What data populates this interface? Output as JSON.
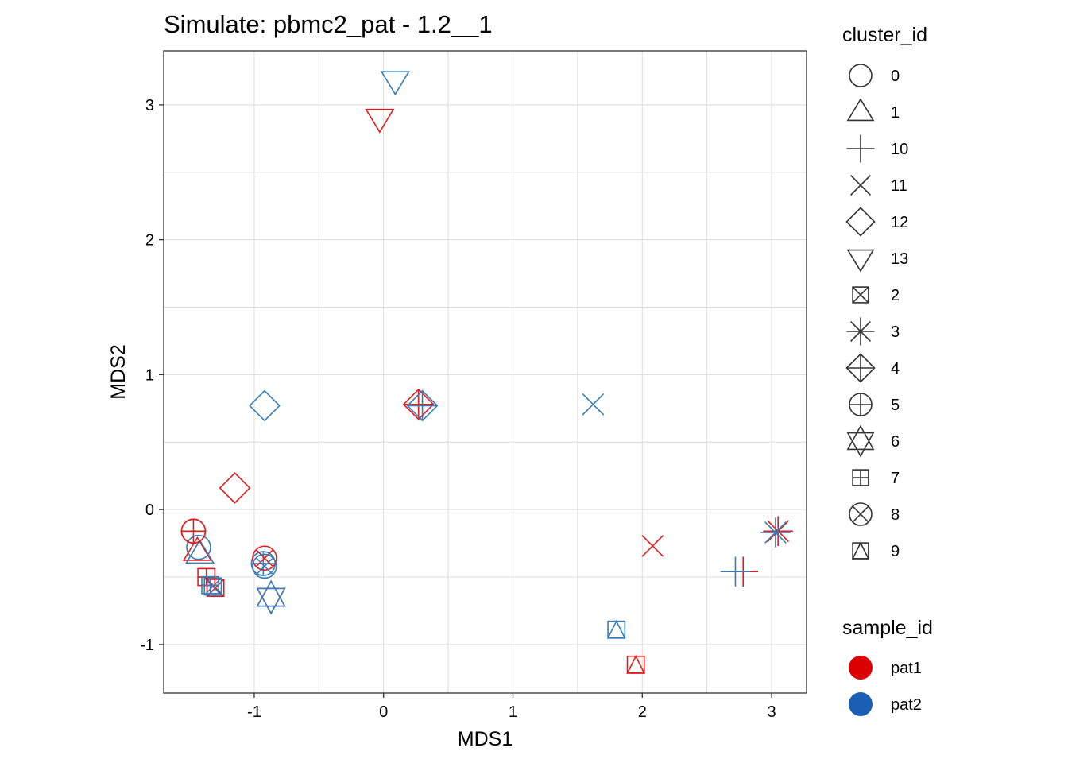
{
  "chart_data": {
    "type": "scatter",
    "title": "Simulate: pbmc2_pat - 1.2__1",
    "xlabel": "MDS1",
    "ylabel": "MDS2",
    "xlim": [
      -1.7,
      3.27
    ],
    "ylim": [
      -1.36,
      3.4
    ],
    "xticks": [
      -1,
      0,
      1,
      2,
      3
    ],
    "yticks": [
      -1,
      0,
      1,
      2,
      3
    ],
    "xtick_labels": [
      "-1",
      "0",
      "1",
      "2",
      "3"
    ],
    "ytick_labels": [
      "-1",
      "0",
      "1",
      "2",
      "3"
    ],
    "grid": true,
    "legend_position": "right",
    "colors": {
      "pat1": "#e41a1c",
      "pat2": "#377eb8",
      "legend_pat1": "#dd0000",
      "legend_pat2": "#1a5fb4"
    },
    "legend_shape": {
      "title": "cluster_id",
      "entries": [
        {
          "label": "0",
          "shape": "circle"
        },
        {
          "label": "1",
          "shape": "triangle"
        },
        {
          "label": "10",
          "shape": "plus"
        },
        {
          "label": "11",
          "shape": "cross"
        },
        {
          "label": "12",
          "shape": "diamond"
        },
        {
          "label": "13",
          "shape": "triangle-down"
        },
        {
          "label": "2",
          "shape": "square-cross"
        },
        {
          "label": "3",
          "shape": "asterisk"
        },
        {
          "label": "4",
          "shape": "diamond-plus"
        },
        {
          "label": "5",
          "shape": "circle-plus"
        },
        {
          "label": "6",
          "shape": "star-of-david"
        },
        {
          "label": "7",
          "shape": "square-plus"
        },
        {
          "label": "8",
          "shape": "circle-cross"
        },
        {
          "label": "9",
          "shape": "square-triangle"
        }
      ]
    },
    "legend_color": {
      "title": "sample_id",
      "entries": [
        {
          "label": "pat1",
          "color": "#dd0000"
        },
        {
          "label": "pat2",
          "color": "#1a5fb4"
        }
      ]
    },
    "points": [
      {
        "cluster": "0",
        "sample": "pat1",
        "x": -1.47,
        "y": -0.16
      },
      {
        "cluster": "0",
        "sample": "pat2",
        "x": -1.43,
        "y": -0.28
      },
      {
        "cluster": "1",
        "sample": "pat1",
        "x": -1.44,
        "y": -0.31
      },
      {
        "cluster": "1",
        "sample": "pat2",
        "x": -1.42,
        "y": -0.33
      },
      {
        "cluster": "10",
        "sample": "pat1",
        "x": 2.78,
        "y": -0.46
      },
      {
        "cluster": "10",
        "sample": "pat2",
        "x": 2.72,
        "y": -0.46
      },
      {
        "cluster": "11",
        "sample": "pat1",
        "x": 2.08,
        "y": -0.27
      },
      {
        "cluster": "11",
        "sample": "pat2",
        "x": 1.62,
        "y": 0.78
      },
      {
        "cluster": "12",
        "sample": "pat1",
        "x": -1.15,
        "y": 0.16
      },
      {
        "cluster": "12",
        "sample": "pat2",
        "x": -0.92,
        "y": 0.77
      },
      {
        "cluster": "13",
        "sample": "pat1",
        "x": -0.03,
        "y": 2.9
      },
      {
        "cluster": "13",
        "sample": "pat2",
        "x": 0.09,
        "y": 3.18
      },
      {
        "cluster": "2",
        "sample": "pat1",
        "x": -1.3,
        "y": -0.58
      },
      {
        "cluster": "2",
        "sample": "pat2",
        "x": -1.32,
        "y": -0.57
      },
      {
        "cluster": "3",
        "sample": "pat1",
        "x": 3.05,
        "y": -0.16
      },
      {
        "cluster": "3",
        "sample": "pat2",
        "x": 3.03,
        "y": -0.17
      },
      {
        "cluster": "4",
        "sample": "pat1",
        "x": 0.27,
        "y": 0.78
      },
      {
        "cluster": "4",
        "sample": "pat2",
        "x": 0.3,
        "y": 0.77
      },
      {
        "cluster": "5",
        "sample": "pat1",
        "x": -1.47,
        "y": -0.16
      },
      {
        "cluster": "5",
        "sample": "pat2",
        "x": -0.93,
        "y": -0.4
      },
      {
        "cluster": "6",
        "sample": "pat1",
        "x": -0.87,
        "y": -0.65
      },
      {
        "cluster": "6",
        "sample": "pat2",
        "x": -0.87,
        "y": -0.65
      },
      {
        "cluster": "7",
        "sample": "pat1",
        "x": -1.37,
        "y": -0.5
      },
      {
        "cluster": "7",
        "sample": "pat2",
        "x": -1.34,
        "y": -0.56
      },
      {
        "cluster": "8",
        "sample": "pat1",
        "x": -0.92,
        "y": -0.36
      },
      {
        "cluster": "8",
        "sample": "pat2",
        "x": -0.92,
        "y": -0.42
      },
      {
        "cluster": "9",
        "sample": "pat1",
        "x": 1.95,
        "y": -1.15
      },
      {
        "cluster": "9",
        "sample": "pat2",
        "x": 1.8,
        "y": -0.89
      }
    ]
  }
}
